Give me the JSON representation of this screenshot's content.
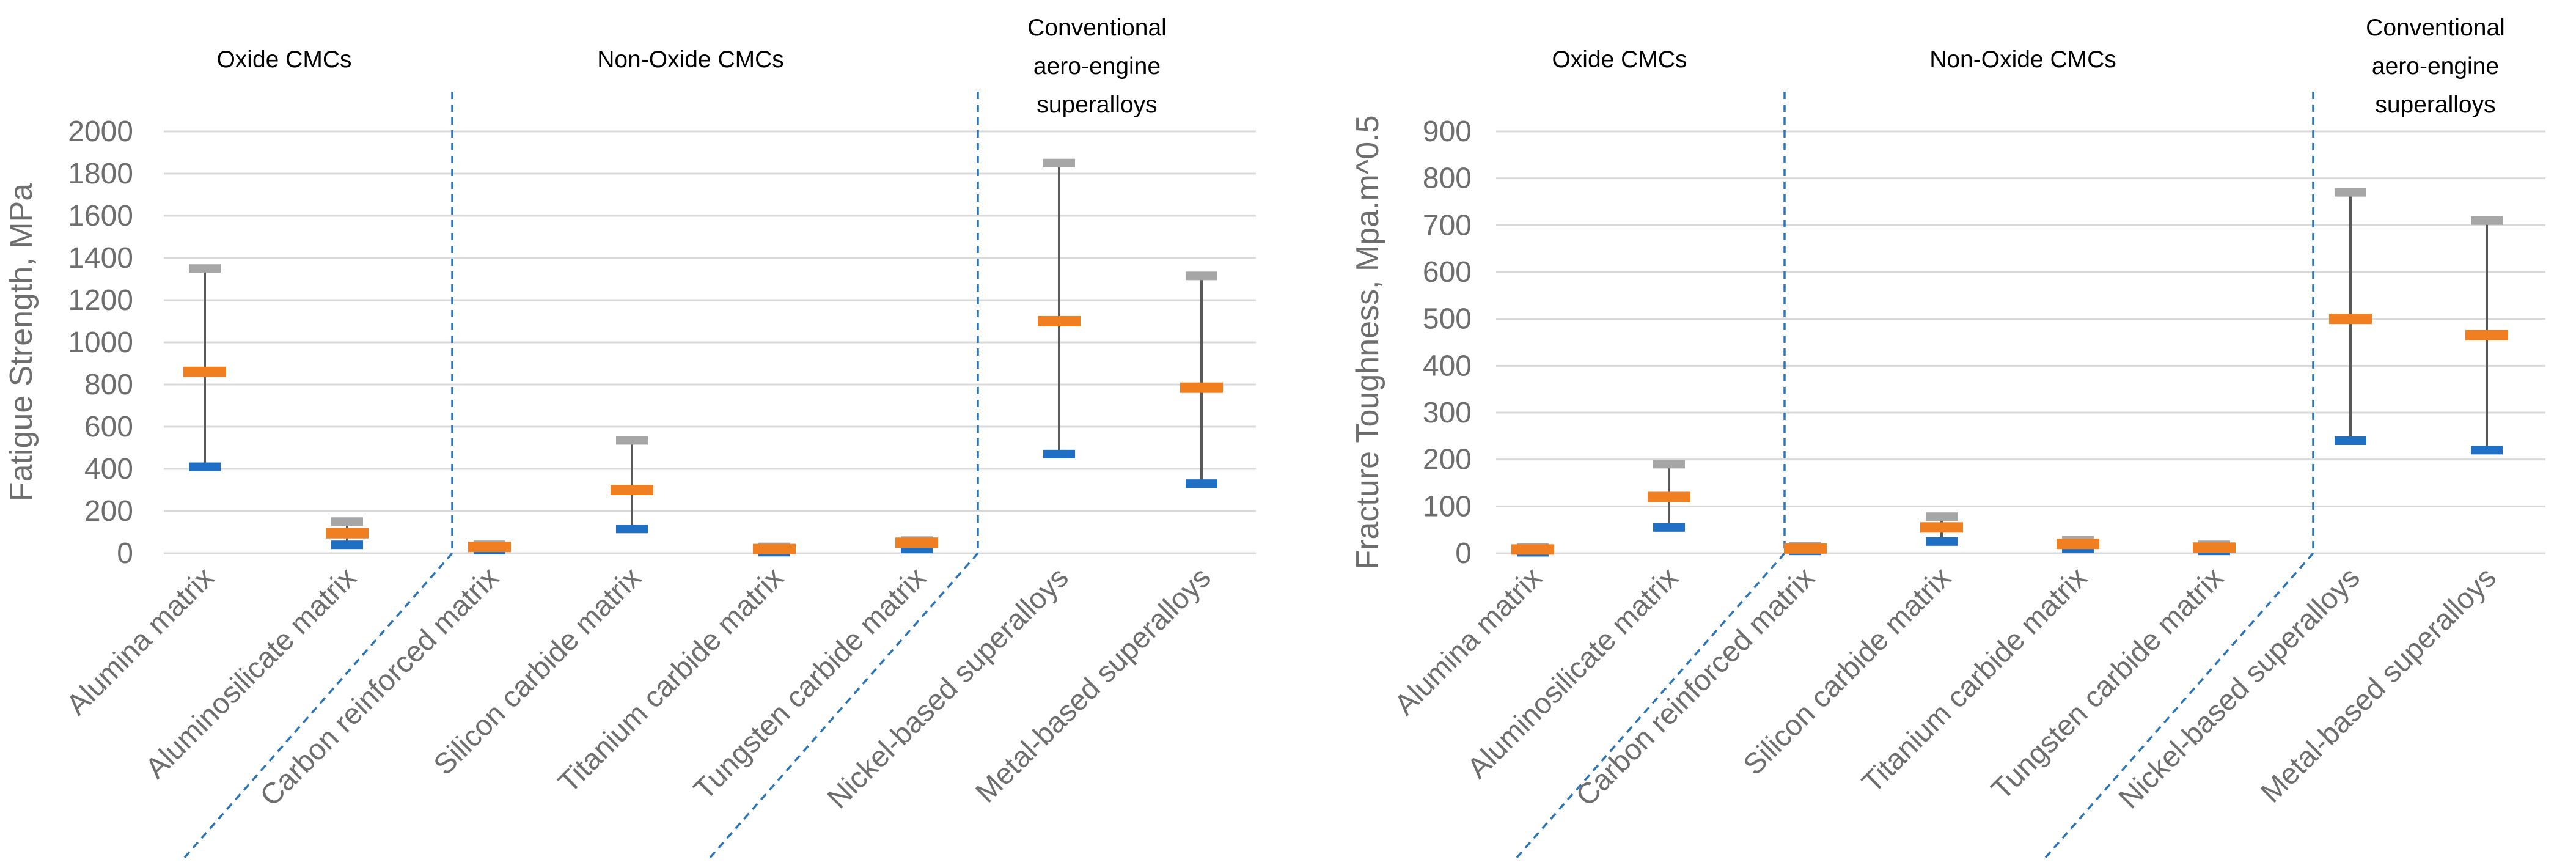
{
  "chart_data": [
    {
      "type": "range",
      "title": "",
      "xlabel": "",
      "ylabel": "Fatigue Strength, MPa",
      "ylim": [
        0,
        2000
      ],
      "yticks": [
        "0",
        "200",
        "400",
        "600",
        "800",
        "1000",
        "1200",
        "1400",
        "1600",
        "1800",
        "2000"
      ],
      "grid": true,
      "categories": [
        "Alumina matrix",
        "Aluminosilicate matrix",
        "Carbon reinforced matrix",
        "Silicon carbide matrix",
        "Titanium carbide matrix",
        "Tungsten carbide matrix",
        "Nickel-based superalloys",
        "Metal-based superalloys"
      ],
      "series": [
        {
          "role": "min",
          "color": "#1f6fc5",
          "values": [
            410,
            40,
            15,
            115,
            5,
            20,
            470,
            330
          ]
        },
        {
          "role": "mean",
          "color": "#f07f22",
          "values": [
            860,
            95,
            30,
            300,
            20,
            50,
            1100,
            785
          ]
        },
        {
          "role": "max",
          "color": "#a6a6a6",
          "values": [
            1350,
            150,
            40,
            535,
            30,
            60,
            1850,
            1315
          ]
        }
      ],
      "sections": [
        {
          "lines": [
            "Oxide CMCs"
          ]
        },
        {
          "lines": [
            "Non-Oxide CMCs"
          ]
        },
        {
          "lines": [
            "Conventional",
            "aero-engine",
            "superalloys"
          ]
        }
      ]
    },
    {
      "type": "range",
      "title": "",
      "xlabel": "",
      "ylabel": "Fracture Toughness, Mpa.m^0.5",
      "ylim": [
        0,
        900
      ],
      "yticks": [
        "0",
        "100",
        "200",
        "300",
        "400",
        "500",
        "600",
        "700",
        "800",
        "900"
      ],
      "grid": true,
      "categories": [
        "Alumina matrix",
        "Aluminosilicate matrix",
        "Carbon reinforced matrix",
        "Silicon carbide matrix",
        "Titanium carbide matrix",
        "Tungsten carbide matrix",
        "Nickel-based superalloys",
        "Metal-based superalloys"
      ],
      "series": [
        {
          "role": "min",
          "color": "#1f6fc5",
          "values": [
            2,
            55,
            5,
            25,
            10,
            5,
            240,
            220
          ]
        },
        {
          "role": "mean",
          "color": "#f07f22",
          "values": [
            8,
            120,
            10,
            55,
            20,
            12,
            500,
            465
          ]
        },
        {
          "role": "max",
          "color": "#a6a6a6",
          "values": [
            12,
            190,
            15,
            78,
            28,
            18,
            770,
            710
          ]
        }
      ],
      "sections": [
        {
          "lines": [
            "Oxide CMCs"
          ]
        },
        {
          "lines": [
            "Non-Oxide CMCs"
          ]
        },
        {
          "lines": [
            "Conventional",
            "aero-engine",
            "superalloys"
          ]
        }
      ]
    }
  ]
}
